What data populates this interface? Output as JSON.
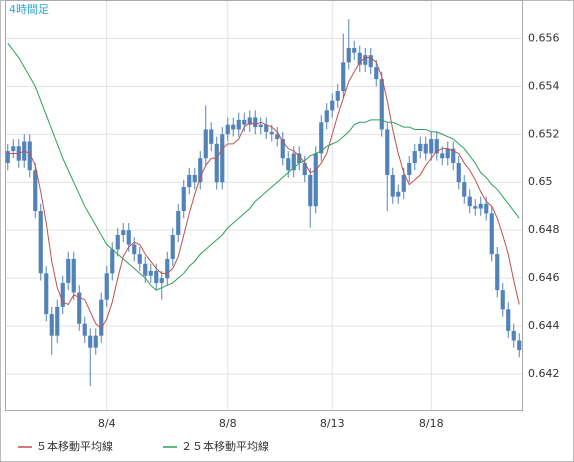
{
  "chart_data": {
    "type": "candlestick",
    "title": "4時間足",
    "categories": [
      null,
      null,
      null,
      null,
      null,
      null,
      null,
      null,
      null,
      null,
      null,
      null,
      null,
      null,
      null,
      null,
      null,
      null,
      "8/4",
      null,
      null,
      null,
      null,
      null,
      null,
      null,
      null,
      null,
      null,
      null,
      null,
      null,
      null,
      null,
      null,
      null,
      null,
      null,
      null,
      null,
      "8/8",
      null,
      null,
      null,
      null,
      null,
      null,
      null,
      null,
      null,
      null,
      null,
      null,
      null,
      null,
      null,
      null,
      null,
      null,
      "8/13",
      null,
      null,
      null,
      null,
      null,
      null,
      null,
      null,
      null,
      null,
      null,
      null,
      null,
      null,
      null,
      null,
      null,
      "8/18",
      null,
      null,
      null,
      null,
      null,
      null,
      null,
      null,
      null,
      null,
      null,
      null,
      null,
      null,
      null,
      null
    ],
    "open": [
      0.6508,
      0.6513,
      0.6515,
      0.6509,
      0.6517,
      0.6505,
      0.6488,
      0.6462,
      0.6445,
      0.6436,
      0.6448,
      0.6458,
      0.6468,
      0.6454,
      0.6441,
      0.6436,
      0.6431,
      0.6436,
      0.6451,
      0.6462,
      0.6472,
      0.6478,
      0.648,
      0.6474,
      0.647,
      0.6466,
      0.6461,
      0.6463,
      0.6458,
      0.646,
      0.6468,
      0.6478,
      0.6488,
      0.6498,
      0.6503,
      0.65,
      0.651,
      0.6522,
      0.6516,
      0.65,
      0.652,
      0.6524,
      0.6522,
      0.6526,
      0.6524,
      0.6527,
      0.6523,
      0.6524,
      0.6521,
      0.652,
      0.6518,
      0.651,
      0.6505,
      0.6512,
      0.6508,
      0.6503,
      0.649,
      0.6512,
      0.6525,
      0.653,
      0.6534,
      0.6538,
      0.655,
      0.6556,
      0.6554,
      0.6549,
      0.6553,
      0.6548,
      0.6543,
      0.6522,
      0.6503,
      0.6494,
      0.6496,
      0.6503,
      0.6508,
      0.6513,
      0.6516,
      0.6512,
      0.6518,
      0.6512,
      0.651,
      0.6514,
      0.6508,
      0.65,
      0.6494,
      0.649,
      0.6489,
      0.6491,
      0.6487,
      0.647,
      0.6455,
      0.6447,
      0.6438,
      0.6434
    ],
    "high": [
      0.6516,
      0.6518,
      0.6518,
      0.652,
      0.652,
      0.6508,
      0.6491,
      0.6465,
      0.6448,
      0.6451,
      0.6461,
      0.6471,
      0.6471,
      0.6457,
      0.6444,
      0.6439,
      0.6439,
      0.6454,
      0.6465,
      0.6475,
      0.6481,
      0.6483,
      0.6483,
      0.6477,
      0.6473,
      0.6469,
      0.6466,
      0.6466,
      0.6463,
      0.6471,
      0.6481,
      0.6491,
      0.6501,
      0.6506,
      0.6506,
      0.6513,
      0.6532,
      0.6525,
      0.6519,
      0.6523,
      0.6527,
      0.6527,
      0.6529,
      0.6529,
      0.653,
      0.653,
      0.6527,
      0.6527,
      0.6524,
      0.6523,
      0.6521,
      0.6513,
      0.6515,
      0.6515,
      0.6511,
      0.6506,
      0.6515,
      0.6528,
      0.6533,
      0.6537,
      0.6541,
      0.6562,
      0.6568,
      0.6559,
      0.6557,
      0.6556,
      0.6556,
      0.6551,
      0.6546,
      0.6525,
      0.6506,
      0.6499,
      0.6506,
      0.6511,
      0.6516,
      0.6519,
      0.6519,
      0.6521,
      0.6521,
      0.6515,
      0.6517,
      0.6517,
      0.6511,
      0.6503,
      0.6497,
      0.6493,
      0.6494,
      0.6494,
      0.649,
      0.6473,
      0.6458,
      0.645,
      0.6441,
      0.6437
    ],
    "low": [
      0.6505,
      0.651,
      0.6506,
      0.6506,
      0.6502,
      0.6485,
      0.6459,
      0.6442,
      0.6428,
      0.6433,
      0.6445,
      0.6455,
      0.6451,
      0.6438,
      0.6433,
      0.6415,
      0.6428,
      0.6433,
      0.6448,
      0.6459,
      0.6469,
      0.6475,
      0.6471,
      0.6467,
      0.6463,
      0.6458,
      0.6458,
      0.6455,
      0.6451,
      0.6457,
      0.6465,
      0.6475,
      0.6485,
      0.6495,
      0.6497,
      0.6497,
      0.6507,
      0.6513,
      0.6497,
      0.6497,
      0.6517,
      0.6519,
      0.6519,
      0.6521,
      0.6521,
      0.652,
      0.652,
      0.6518,
      0.6517,
      0.6515,
      0.6507,
      0.6502,
      0.6502,
      0.6505,
      0.65,
      0.6481,
      0.6487,
      0.6509,
      0.6522,
      0.6527,
      0.6531,
      0.6535,
      0.6547,
      0.6551,
      0.6546,
      0.6546,
      0.6545,
      0.654,
      0.6519,
      0.6488,
      0.6491,
      0.6491,
      0.6493,
      0.65,
      0.6505,
      0.651,
      0.6509,
      0.6509,
      0.6509,
      0.6507,
      0.6507,
      0.6505,
      0.6497,
      0.6491,
      0.6487,
      0.6486,
      0.6486,
      0.6484,
      0.6467,
      0.6452,
      0.6444,
      0.6435,
      0.6431,
      0.6427
    ],
    "close": [
      0.6513,
      0.6515,
      0.6509,
      0.6517,
      0.6505,
      0.6488,
      0.6462,
      0.6445,
      0.6436,
      0.6448,
      0.6458,
      0.6468,
      0.6454,
      0.6441,
      0.6436,
      0.6431,
      0.6436,
      0.6451,
      0.6462,
      0.6472,
      0.6478,
      0.648,
      0.6474,
      0.647,
      0.6466,
      0.6461,
      0.6463,
      0.6458,
      0.646,
      0.6468,
      0.6478,
      0.6488,
      0.6498,
      0.6503,
      0.65,
      0.651,
      0.6522,
      0.6516,
      0.65,
      0.652,
      0.6524,
      0.6522,
      0.6526,
      0.6524,
      0.6527,
      0.6523,
      0.6524,
      0.6521,
      0.652,
      0.6518,
      0.651,
      0.6505,
      0.6512,
      0.6508,
      0.6503,
      0.649,
      0.6512,
      0.6525,
      0.653,
      0.6534,
      0.6538,
      0.655,
      0.6556,
      0.6554,
      0.6549,
      0.6553,
      0.6548,
      0.6543,
      0.6522,
      0.6503,
      0.6494,
      0.6496,
      0.6503,
      0.6508,
      0.6513,
      0.6516,
      0.6512,
      0.6518,
      0.6512,
      0.651,
      0.6514,
      0.6508,
      0.65,
      0.6494,
      0.649,
      0.6489,
      0.6491,
      0.6487,
      0.647,
      0.6455,
      0.6447,
      0.6438,
      0.6434,
      0.643
    ],
    "color": "#5283b8",
    "series": [
      {
        "name": "５本移動平均線",
        "color": "#c0504d",
        "values": [
          0.6512,
          0.6512,
          0.6512,
          0.6513,
          0.6512,
          0.6507,
          0.6496,
          0.6483,
          0.6467,
          0.6456,
          0.645,
          0.6449,
          0.6453,
          0.6452,
          0.6451,
          0.6446,
          0.6441,
          0.6439,
          0.6443,
          0.645,
          0.646,
          0.6469,
          0.6473,
          0.6475,
          0.6474,
          0.647,
          0.6467,
          0.6464,
          0.6462,
          0.6462,
          0.6464,
          0.6469,
          0.6478,
          0.6487,
          0.6495,
          0.6502,
          0.6507,
          0.651,
          0.651,
          0.6514,
          0.6516,
          0.6516,
          0.6518,
          0.6523,
          0.6525,
          0.6524,
          0.6525,
          0.6524,
          0.6523,
          0.6521,
          0.6517,
          0.6514,
          0.6513,
          0.6511,
          0.6508,
          0.6504,
          0.6505,
          0.6508,
          0.6512,
          0.652,
          0.6528,
          0.6535,
          0.6542,
          0.6546,
          0.655,
          0.6552,
          0.6552,
          0.655,
          0.6544,
          0.6534,
          0.6522,
          0.6512,
          0.6504,
          0.6499,
          0.6501,
          0.6503,
          0.6507,
          0.651,
          0.6513,
          0.6514,
          0.6514,
          0.6513,
          0.6512,
          0.6508,
          0.6505,
          0.6501,
          0.6496,
          0.6492,
          0.649,
          0.6485,
          0.6478,
          0.647,
          0.6459,
          0.6449
        ]
      },
      {
        "name": "２５本移動平均線",
        "color": "#2ca05a",
        "values": [
          0.6558,
          0.6555,
          0.6552,
          0.6548,
          0.6544,
          0.654,
          0.6534,
          0.6528,
          0.6522,
          0.6516,
          0.651,
          0.6505,
          0.65,
          0.6495,
          0.649,
          0.6486,
          0.6482,
          0.6478,
          0.6474,
          0.6472,
          0.647,
          0.6468,
          0.6466,
          0.6464,
          0.6462,
          0.646,
          0.6457,
          0.6455,
          0.6456,
          0.6457,
          0.6458,
          0.646,
          0.6462,
          0.6465,
          0.6467,
          0.647,
          0.6472,
          0.6474,
          0.6476,
          0.6478,
          0.6481,
          0.6483,
          0.6485,
          0.6487,
          0.6489,
          0.6492,
          0.6494,
          0.6496,
          0.6498,
          0.65,
          0.6502,
          0.6504,
          0.6506,
          0.6508,
          0.6509,
          0.6511,
          0.6512,
          0.6513,
          0.6515,
          0.6516,
          0.6517,
          0.6519,
          0.6521,
          0.6524,
          0.6525,
          0.6525,
          0.6526,
          0.6526,
          0.6526,
          0.6525,
          0.6525,
          0.6524,
          0.6523,
          0.6523,
          0.6522,
          0.6522,
          0.6522,
          0.6521,
          0.6521,
          0.652,
          0.6519,
          0.6518,
          0.6516,
          0.6514,
          0.6511,
          0.6508,
          0.6504,
          0.6502,
          0.6499,
          0.6497,
          0.6494,
          0.6491,
          0.6488,
          0.6485
        ]
      }
    ],
    "ylim": [
      0.6405,
      0.6576
    ],
    "yticks": [
      0.642,
      0.644,
      0.646,
      0.648,
      0.65,
      0.652,
      0.654,
      0.656
    ],
    "grid": true
  }
}
